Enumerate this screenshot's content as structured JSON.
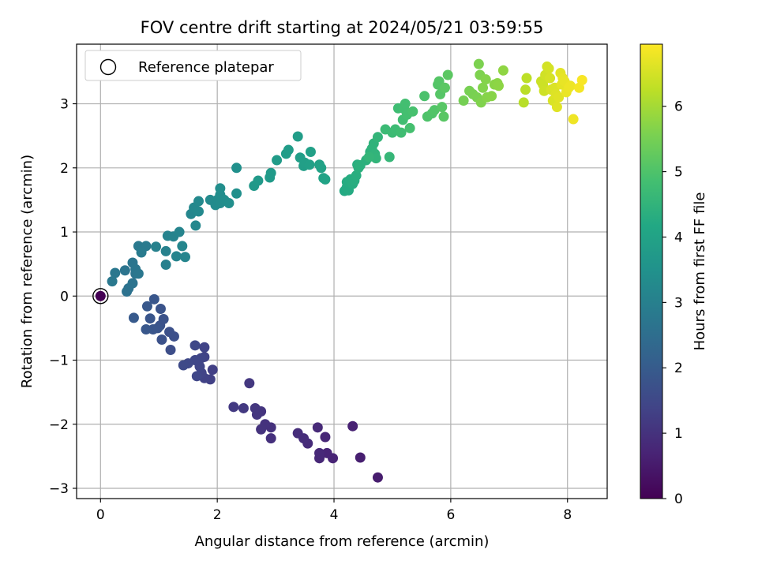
{
  "chart_data": {
    "type": "scatter",
    "title": "FOV centre drift starting at 2024/05/21 03:59:55",
    "xlabel": "Angular distance from reference (arcmin)",
    "ylabel": "Rotation from reference (arcmin)",
    "xlim": [
      -0.41,
      8.68
    ],
    "ylim": [
      -3.16,
      3.93
    ],
    "xticks": [
      0,
      2,
      4,
      6,
      8
    ],
    "xtick_labels": [
      "0",
      "2",
      "4",
      "6",
      "8"
    ],
    "yticks": [
      -3,
      -2,
      -1,
      0,
      1,
      2,
      3
    ],
    "ytick_labels": [
      "−3",
      "−2",
      "−1",
      "0",
      "1",
      "2",
      "3"
    ],
    "grid": true,
    "legend": {
      "placement": "top-left",
      "entries": [
        "Reference platepar"
      ]
    },
    "colorbar": {
      "label": "Hours from first FF file",
      "range": [
        0,
        6.95
      ],
      "ticks": [
        0,
        1,
        2,
        3,
        4,
        5,
        6
      ],
      "tick_labels": [
        "0",
        "1",
        "2",
        "3",
        "4",
        "5",
        "6"
      ],
      "colormap": "viridis"
    },
    "reference_point": {
      "x": 0,
      "y": 0
    },
    "points": [
      [
        0,
        0,
        0.0
      ],
      [
        4.75,
        -2.83,
        0.55
      ],
      [
        4.45,
        -2.52,
        0.6
      ],
      [
        4.32,
        -2.03,
        0.65
      ],
      [
        3.98,
        -2.53,
        0.7
      ],
      [
        3.88,
        -2.45,
        0.72
      ],
      [
        3.85,
        -2.2,
        0.75
      ],
      [
        3.75,
        -2.53,
        0.78
      ],
      [
        3.75,
        -2.45,
        0.8
      ],
      [
        3.72,
        -2.05,
        0.82
      ],
      [
        3.55,
        -2.3,
        0.85
      ],
      [
        3.48,
        -2.22,
        0.88
      ],
      [
        3.38,
        -2.14,
        0.9
      ],
      [
        2.92,
        -2.22,
        0.95
      ],
      [
        2.92,
        -2.05,
        0.98
      ],
      [
        2.82,
        -2.0,
        1.0
      ],
      [
        2.75,
        -2.08,
        1.02
      ],
      [
        2.75,
        -1.8,
        1.05
      ],
      [
        2.68,
        -1.85,
        1.08
      ],
      [
        2.65,
        -1.75,
        1.1
      ],
      [
        2.55,
        -1.36,
        1.12
      ],
      [
        2.45,
        -1.75,
        1.15
      ],
      [
        2.28,
        -1.73,
        1.18
      ],
      [
        1.92,
        -1.15,
        1.3
      ],
      [
        1.88,
        -1.3,
        1.32
      ],
      [
        1.78,
        -1.28,
        1.35
      ],
      [
        1.78,
        -0.95,
        1.37
      ],
      [
        1.78,
        -0.8,
        1.38
      ],
      [
        1.73,
        -1.2,
        1.4
      ],
      [
        1.72,
        -0.97,
        1.42
      ],
      [
        1.7,
        -1.1,
        1.44
      ],
      [
        1.65,
        -1.25,
        1.46
      ],
      [
        1.62,
        -1.0,
        1.48
      ],
      [
        1.62,
        -0.77,
        1.5
      ],
      [
        1.5,
        -1.05,
        1.52
      ],
      [
        1.42,
        -1.08,
        1.54
      ],
      [
        1.2,
        -0.84,
        1.65
      ],
      [
        1.26,
        -0.63,
        1.68
      ],
      [
        1.18,
        -0.56,
        1.7
      ],
      [
        1.05,
        -0.68,
        1.72
      ],
      [
        1.08,
        -0.36,
        1.74
      ],
      [
        1.02,
        -0.46,
        1.76
      ],
      [
        1.03,
        -0.2,
        1.78
      ],
      [
        0.98,
        -0.5,
        1.8
      ],
      [
        0.9,
        -0.52,
        1.82
      ],
      [
        0.85,
        -0.35,
        1.84
      ],
      [
        0.92,
        -0.05,
        1.86
      ],
      [
        0.78,
        -0.52,
        1.88
      ],
      [
        0.8,
        -0.16,
        1.9
      ],
      [
        0.57,
        -0.34,
        1.95
      ],
      [
        0.45,
        0.07,
        2.6
      ],
      [
        0.48,
        0.12,
        2.62
      ],
      [
        0.55,
        0.2,
        2.64
      ],
      [
        0.42,
        0.4,
        2.66
      ],
      [
        0.6,
        0.35,
        2.68
      ],
      [
        0.55,
        0.52,
        2.7
      ],
      [
        0.6,
        0.42,
        2.72
      ],
      [
        0.65,
        0.35,
        2.74
      ],
      [
        0.25,
        0.36,
        2.76
      ],
      [
        0.2,
        0.23,
        2.78
      ],
      [
        0.65,
        0.78,
        2.8
      ],
      [
        0.72,
        0.75,
        2.82
      ],
      [
        0.78,
        0.78,
        2.84
      ],
      [
        0.7,
        0.68,
        2.86
      ],
      [
        1.12,
        0.49,
        3.0
      ],
      [
        0.95,
        0.77,
        3.02
      ],
      [
        1.12,
        0.7,
        3.04
      ],
      [
        1.15,
        0.94,
        3.06
      ],
      [
        1.25,
        0.93,
        3.08
      ],
      [
        1.3,
        0.62,
        3.1
      ],
      [
        1.35,
        1.0,
        3.12
      ],
      [
        1.45,
        0.61,
        3.14
      ],
      [
        1.4,
        0.78,
        3.16
      ],
      [
        1.55,
        1.28,
        3.18
      ],
      [
        1.63,
        1.1,
        3.2
      ],
      [
        1.6,
        1.38,
        3.22
      ],
      [
        1.68,
        1.32,
        3.24
      ],
      [
        1.68,
        1.48,
        3.26
      ],
      [
        1.88,
        1.5,
        3.28
      ],
      [
        1.97,
        1.42,
        3.3
      ],
      [
        2.0,
        1.5,
        3.32
      ],
      [
        2.05,
        1.45,
        3.34
      ],
      [
        2.05,
        1.58,
        3.36
      ],
      [
        2.05,
        1.68,
        3.38
      ],
      [
        2.12,
        1.5,
        3.4
      ],
      [
        2.2,
        1.45,
        3.42
      ],
      [
        2.33,
        1.6,
        3.44
      ],
      [
        2.33,
        2.0,
        3.46
      ],
      [
        2.63,
        1.72,
        3.7
      ],
      [
        2.7,
        1.8,
        3.72
      ],
      [
        2.9,
        1.85,
        3.74
      ],
      [
        2.92,
        1.92,
        3.76
      ],
      [
        3.02,
        2.12,
        3.78
      ],
      [
        3.18,
        2.22,
        3.8
      ],
      [
        3.22,
        2.28,
        3.82
      ],
      [
        3.38,
        2.49,
        3.84
      ],
      [
        3.42,
        2.16,
        3.86
      ],
      [
        3.48,
        2.03,
        3.88
      ],
      [
        3.5,
        2.08,
        3.9
      ],
      [
        3.58,
        2.05,
        3.92
      ],
      [
        3.6,
        2.25,
        3.94
      ],
      [
        3.75,
        2.05,
        3.96
      ],
      [
        3.78,
        2.0,
        3.98
      ],
      [
        3.82,
        1.84,
        4.0
      ],
      [
        3.85,
        1.82,
        4.02
      ],
      [
        4.18,
        1.64,
        4.2
      ],
      [
        4.22,
        1.7,
        4.22
      ],
      [
        4.25,
        1.65,
        4.24
      ],
      [
        4.22,
        1.78,
        4.26
      ],
      [
        4.28,
        1.82,
        4.28
      ],
      [
        4.32,
        1.75,
        4.3
      ],
      [
        4.35,
        1.8,
        4.32
      ],
      [
        4.38,
        1.88,
        4.34
      ],
      [
        4.4,
        2.05,
        4.36
      ],
      [
        4.42,
        2.0,
        4.38
      ],
      [
        4.45,
        2.04,
        4.4
      ],
      [
        4.55,
        2.12,
        4.42
      ],
      [
        4.62,
        2.25,
        4.44
      ],
      [
        4.65,
        2.3,
        4.46
      ],
      [
        4.68,
        2.38,
        4.48
      ],
      [
        4.7,
        2.22,
        4.5
      ],
      [
        4.72,
        2.15,
        4.52
      ],
      [
        4.75,
        2.48,
        4.54
      ],
      [
        4.6,
        2.17,
        4.56
      ],
      [
        4.95,
        2.17,
        4.6
      ],
      [
        4.88,
        2.6,
        4.7
      ],
      [
        5.0,
        2.55,
        4.72
      ],
      [
        5.05,
        2.6,
        4.74
      ],
      [
        5.1,
        2.93,
        4.76
      ],
      [
        5.15,
        2.55,
        4.78
      ],
      [
        5.18,
        2.75,
        4.8
      ],
      [
        5.2,
        2.92,
        4.82
      ],
      [
        5.22,
        3.0,
        4.84
      ],
      [
        5.25,
        2.83,
        4.86
      ],
      [
        5.3,
        2.62,
        4.88
      ],
      [
        5.35,
        2.88,
        4.9
      ],
      [
        5.55,
        3.12,
        4.95
      ],
      [
        5.6,
        2.8,
        5.0
      ],
      [
        5.68,
        2.85,
        5.02
      ],
      [
        5.72,
        2.9,
        5.04
      ],
      [
        5.78,
        3.3,
        5.06
      ],
      [
        5.8,
        3.35,
        5.08
      ],
      [
        5.82,
        3.15,
        5.1
      ],
      [
        5.85,
        2.95,
        5.12
      ],
      [
        5.88,
        2.8,
        5.14
      ],
      [
        5.9,
        3.25,
        5.16
      ],
      [
        5.95,
        3.45,
        5.18
      ],
      [
        6.22,
        3.05,
        5.5
      ],
      [
        6.32,
        3.2,
        5.52
      ],
      [
        6.38,
        3.15,
        5.54
      ],
      [
        6.45,
        3.1,
        5.56
      ],
      [
        6.48,
        3.62,
        5.58
      ],
      [
        6.5,
        3.45,
        5.6
      ],
      [
        6.52,
        3.02,
        5.62
      ],
      [
        6.55,
        3.25,
        5.64
      ],
      [
        6.6,
        3.38,
        5.66
      ],
      [
        6.62,
        3.1,
        5.68
      ],
      [
        6.7,
        3.12,
        5.7
      ],
      [
        6.75,
        3.3,
        5.72
      ],
      [
        6.8,
        3.32,
        5.74
      ],
      [
        6.82,
        3.28,
        5.76
      ],
      [
        6.9,
        3.52,
        5.78
      ],
      [
        7.25,
        3.02,
        6.2
      ],
      [
        7.28,
        3.22,
        6.22
      ],
      [
        7.3,
        3.4,
        6.24
      ],
      [
        7.55,
        3.35,
        6.4
      ],
      [
        7.58,
        3.3,
        6.42
      ],
      [
        7.6,
        3.2,
        6.44
      ],
      [
        7.62,
        3.45,
        6.46
      ],
      [
        7.65,
        3.58,
        6.48
      ],
      [
        7.68,
        3.55,
        6.5
      ],
      [
        7.7,
        3.4,
        6.52
      ],
      [
        7.72,
        3.22,
        6.54
      ],
      [
        7.75,
        3.05,
        6.56
      ],
      [
        7.78,
        3.25,
        6.58
      ],
      [
        7.8,
        3.15,
        6.6
      ],
      [
        7.82,
        2.95,
        6.62
      ],
      [
        7.85,
        3.1,
        6.64
      ],
      [
        7.88,
        3.48,
        6.66
      ],
      [
        7.9,
        3.3,
        6.68
      ],
      [
        7.92,
        3.4,
        6.7
      ],
      [
        7.95,
        3.35,
        6.72
      ],
      [
        7.98,
        3.18,
        6.74
      ],
      [
        8.02,
        3.25,
        6.76
      ],
      [
        8.05,
        3.28,
        6.78
      ],
      [
        8.1,
        2.76,
        6.8
      ],
      [
        8.2,
        3.25,
        6.85
      ],
      [
        8.25,
        3.37,
        6.9
      ]
    ]
  }
}
